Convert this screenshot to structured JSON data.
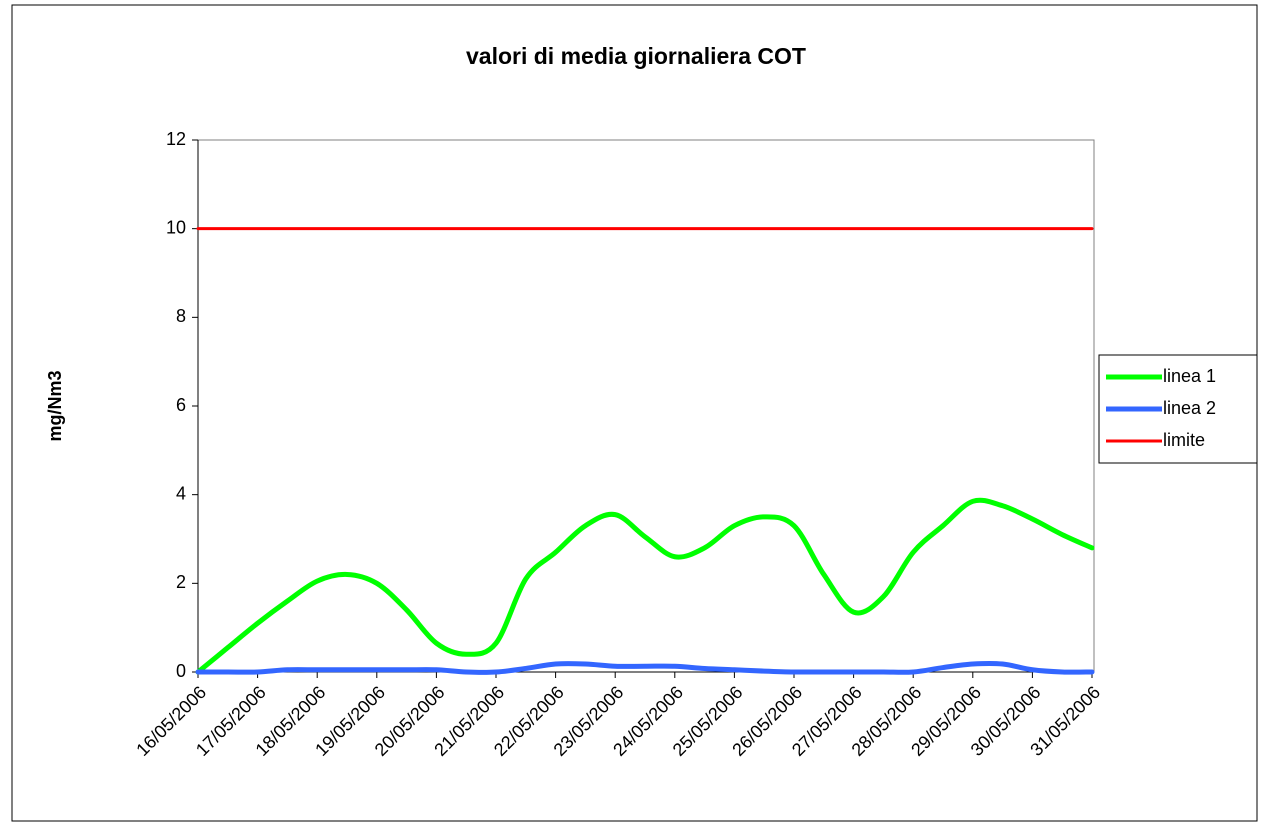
{
  "chart_data": {
    "type": "line",
    "title": "valori di media giornaliera  COT",
    "y_label": "mg/Nm3",
    "categories": [
      "16/05/2006",
      null,
      "17/05/2006",
      null,
      "18/05/2006",
      null,
      "19/05/2006",
      null,
      "20/05/2006",
      null,
      "21/05/2006",
      null,
      "22/05/2006",
      null,
      "23/05/2006",
      null,
      "24/05/2006",
      null,
      "25/05/2006",
      null,
      "26/05/2006",
      null,
      "27/05/2006",
      null,
      "28/05/2006",
      null,
      "29/05/2006",
      null,
      "30/05/2006",
      null,
      "31/05/2006"
    ],
    "series": [
      {
        "name": "linea 1",
        "color": "#00ff00",
        "values": [
          0,
          0.55,
          1.1,
          1.6,
          2.05,
          2.2,
          2.0,
          1.4,
          0.65,
          0.4,
          0.65,
          2.1,
          2.7,
          3.3,
          3.55,
          3.05,
          2.6,
          2.8,
          3.3,
          3.5,
          3.3,
          2.2,
          1.35,
          1.7,
          2.7,
          3.3,
          3.85,
          3.75,
          3.45,
          3.1,
          2.8
        ]
      },
      {
        "name": "linea 2",
        "color": "#3366ff",
        "values": [
          0,
          0,
          0,
          0.05,
          0.05,
          0.05,
          0.05,
          0.05,
          0.05,
          0,
          0,
          0.08,
          0.18,
          0.18,
          0.13,
          0.13,
          0.13,
          0.08,
          0.05,
          0.02,
          0,
          0,
          0,
          0,
          0,
          0.1,
          0.18,
          0.18,
          0.05,
          0,
          0
        ]
      },
      {
        "name": "limite",
        "color": "#ff0000",
        "values": [
          10,
          10,
          10,
          10,
          10,
          10,
          10,
          10,
          10,
          10,
          10,
          10,
          10,
          10,
          10,
          10,
          10,
          10,
          10,
          10,
          10,
          10,
          10,
          10,
          10,
          10,
          10,
          10,
          10,
          10,
          10
        ]
      }
    ],
    "ylim": [
      0,
      12
    ],
    "yticks": [
      0,
      2,
      4,
      6,
      8,
      10,
      12
    ],
    "legend": "right",
    "smooth": true
  }
}
